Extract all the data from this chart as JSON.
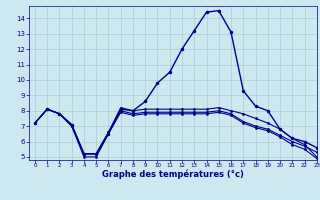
{
  "title": "Graphe des températures (°c)",
  "bg_color": "#cde8ee",
  "grid_color": "#a8cdd4",
  "line_color": "#00008b",
  "xlim": [
    -0.5,
    23
  ],
  "ylim": [
    4.8,
    14.8
  ],
  "yticks": [
    5,
    6,
    7,
    8,
    9,
    10,
    11,
    12,
    13,
    14
  ],
  "xticks": [
    0,
    1,
    2,
    3,
    4,
    5,
    6,
    7,
    8,
    9,
    10,
    11,
    12,
    13,
    14,
    15,
    16,
    17,
    18,
    19,
    20,
    21,
    22,
    23
  ],
  "series": [
    [
      7.2,
      8.1,
      7.8,
      7.1,
      5.2,
      5.2,
      6.5,
      8.1,
      8.0,
      8.6,
      9.8,
      10.5,
      12.0,
      13.2,
      14.4,
      14.5,
      13.1,
      9.3,
      8.3,
      8.0,
      6.8,
      6.2,
      6.0,
      5.6
    ],
    [
      7.2,
      8.1,
      7.8,
      7.1,
      5.2,
      5.2,
      6.6,
      8.2,
      8.0,
      8.1,
      8.1,
      8.1,
      8.1,
      8.1,
      8.1,
      8.2,
      8.0,
      7.8,
      7.5,
      7.2,
      6.8,
      6.2,
      5.8,
      5.0
    ],
    [
      7.2,
      8.1,
      7.8,
      7.0,
      5.2,
      5.2,
      6.6,
      8.0,
      7.8,
      7.9,
      7.9,
      7.9,
      7.9,
      7.9,
      7.9,
      8.0,
      7.8,
      7.3,
      7.0,
      6.8,
      6.4,
      6.0,
      5.7,
      5.3
    ],
    [
      7.2,
      8.1,
      7.8,
      7.0,
      5.0,
      5.0,
      6.5,
      7.9,
      7.7,
      7.8,
      7.8,
      7.8,
      7.8,
      7.8,
      7.8,
      7.9,
      7.7,
      7.2,
      6.9,
      6.7,
      6.3,
      5.8,
      5.5,
      4.9
    ]
  ]
}
